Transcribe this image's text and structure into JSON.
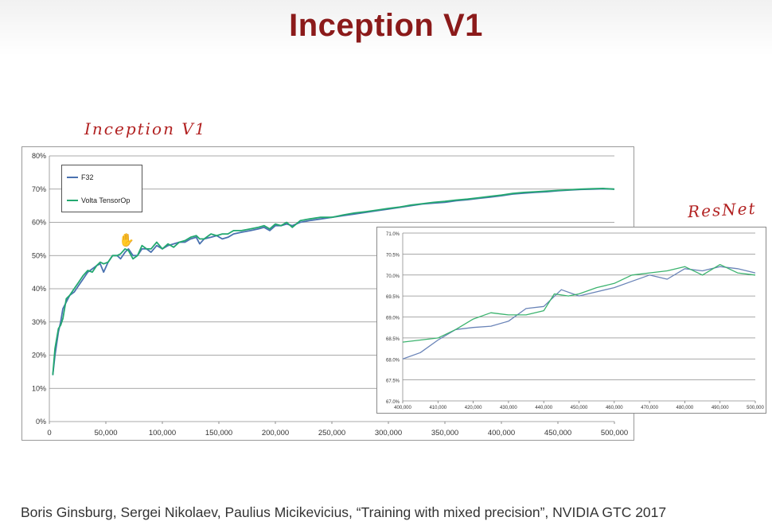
{
  "slide": {
    "title": "Inception V1",
    "handwritten_inception": "Inception V1",
    "handwritten_resnet": "ResNet",
    "citation": "Boris Ginsburg, Sergei Nikolaev, Paulius Micikevicius, “Training with mixed precision”, NVIDIA GTC 2017",
    "title_color": "#8b1a1a",
    "annotation_color": "#b22222"
  },
  "chart_data": [
    {
      "type": "line",
      "title": "",
      "xlabel": "",
      "ylabel": "",
      "xlim": [
        0,
        500000
      ],
      "ylim": [
        0,
        80
      ],
      "x_ticks": [
        "0",
        "50,000",
        "100,000",
        "150,000",
        "200,000",
        "250,000",
        "300,000",
        "350,000",
        "400,000",
        "450,000",
        "500,000"
      ],
      "y_ticks": [
        "0%",
        "10%",
        "20%",
        "30%",
        "40%",
        "50%",
        "60%",
        "70%",
        "80%"
      ],
      "grid": true,
      "legend_position": "top-left",
      "series": [
        {
          "name": "F32",
          "color": "#4a72b0",
          "points": [
            [
              3000,
              14
            ],
            [
              5000,
              20
            ],
            [
              8000,
              27
            ],
            [
              10000,
              30
            ],
            [
              12000,
              34
            ],
            [
              15000,
              36
            ],
            [
              18000,
              38
            ],
            [
              22000,
              39
            ],
            [
              26000,
              41
            ],
            [
              30000,
              43
            ],
            [
              34000,
              45
            ],
            [
              38000,
              46
            ],
            [
              42000,
              47
            ],
            [
              45000,
              47.5
            ],
            [
              48000,
              45
            ],
            [
              52000,
              48
            ],
            [
              56000,
              50
            ],
            [
              60000,
              50
            ],
            [
              63000,
              49
            ],
            [
              67000,
              51
            ],
            [
              70000,
              52
            ],
            [
              74000,
              50
            ],
            [
              78000,
              50
            ],
            [
              82000,
              52
            ],
            [
              86000,
              52
            ],
            [
              90000,
              51
            ],
            [
              95000,
              53
            ],
            [
              100000,
              52
            ],
            [
              105000,
              53
            ],
            [
              110000,
              53.5
            ],
            [
              115000,
              54
            ],
            [
              120000,
              54
            ],
            [
              125000,
              55
            ],
            [
              130000,
              55.5
            ],
            [
              133000,
              53.5
            ],
            [
              137000,
              55
            ],
            [
              143000,
              55.5
            ],
            [
              148000,
              56
            ],
            [
              153000,
              55
            ],
            [
              158000,
              55.5
            ],
            [
              163000,
              56.5
            ],
            [
              170000,
              57
            ],
            [
              178000,
              57.5
            ],
            [
              185000,
              58
            ],
            [
              190000,
              58.5
            ],
            [
              195000,
              57.5
            ],
            [
              200000,
              59
            ],
            [
              205000,
              59
            ],
            [
              210000,
              59.5
            ],
            [
              215000,
              59
            ],
            [
              222000,
              60
            ],
            [
              230000,
              60.5
            ],
            [
              240000,
              61
            ],
            [
              250000,
              61.5
            ],
            [
              260000,
              62
            ],
            [
              270000,
              62.5
            ],
            [
              280000,
              63
            ],
            [
              290000,
              63.5
            ],
            [
              300000,
              64
            ],
            [
              310000,
              64.5
            ],
            [
              320000,
              65
            ],
            [
              330000,
              65.5
            ],
            [
              340000,
              65.8
            ],
            [
              350000,
              66
            ],
            [
              360000,
              66.5
            ],
            [
              370000,
              66.8
            ],
            [
              380000,
              67.2
            ],
            [
              390000,
              67.6
            ],
            [
              400000,
              68
            ],
            [
              410000,
              68.5
            ],
            [
              420000,
              68.8
            ],
            [
              430000,
              69
            ],
            [
              440000,
              69.2
            ],
            [
              450000,
              69.5
            ],
            [
              460000,
              69.7
            ],
            [
              470000,
              69.9
            ],
            [
              480000,
              70
            ],
            [
              490000,
              70.1
            ],
            [
              500000,
              70
            ]
          ]
        },
        {
          "name": "Volta TensorOp",
          "color": "#23a870",
          "points": [
            [
              3000,
              14
            ],
            [
              5000,
              22
            ],
            [
              8000,
              28
            ],
            [
              10000,
              29
            ],
            [
              12000,
              31
            ],
            [
              15000,
              37
            ],
            [
              18000,
              38
            ],
            [
              22000,
              40
            ],
            [
              26000,
              42
            ],
            [
              30000,
              44
            ],
            [
              34000,
              45.5
            ],
            [
              38000,
              45
            ],
            [
              42000,
              47
            ],
            [
              45000,
              48
            ],
            [
              48000,
              47.5
            ],
            [
              52000,
              48
            ],
            [
              56000,
              50
            ],
            [
              60000,
              50
            ],
            [
              63000,
              50.5
            ],
            [
              67000,
              52
            ],
            [
              70000,
              51.5
            ],
            [
              74000,
              49
            ],
            [
              78000,
              50
            ],
            [
              82000,
              53
            ],
            [
              86000,
              52
            ],
            [
              90000,
              52
            ],
            [
              95000,
              54
            ],
            [
              100000,
              52
            ],
            [
              105000,
              53.5
            ],
            [
              110000,
              52.5
            ],
            [
              115000,
              54
            ],
            [
              120000,
              54.5
            ],
            [
              125000,
              55.5
            ],
            [
              130000,
              56
            ],
            [
              133000,
              55
            ],
            [
              137000,
              55
            ],
            [
              143000,
              56.5
            ],
            [
              148000,
              56
            ],
            [
              153000,
              56.5
            ],
            [
              158000,
              56.5
            ],
            [
              163000,
              57.5
            ],
            [
              170000,
              57.5
            ],
            [
              178000,
              58
            ],
            [
              185000,
              58.5
            ],
            [
              190000,
              59
            ],
            [
              195000,
              58
            ],
            [
              200000,
              59.5
            ],
            [
              205000,
              59
            ],
            [
              210000,
              60
            ],
            [
              215000,
              58.5
            ],
            [
              222000,
              60.5
            ],
            [
              230000,
              61
            ],
            [
              240000,
              61.5
            ],
            [
              250000,
              61.5
            ],
            [
              260000,
              62.2
            ],
            [
              270000,
              62.8
            ],
            [
              280000,
              63.2
            ],
            [
              290000,
              63.7
            ],
            [
              300000,
              64.2
            ],
            [
              310000,
              64.6
            ],
            [
              320000,
              65.2
            ],
            [
              330000,
              65.6
            ],
            [
              340000,
              66
            ],
            [
              350000,
              66.3
            ],
            [
              360000,
              66.7
            ],
            [
              370000,
              67
            ],
            [
              380000,
              67.4
            ],
            [
              390000,
              67.8
            ],
            [
              400000,
              68.2
            ],
            [
              410000,
              68.7
            ],
            [
              420000,
              69
            ],
            [
              430000,
              69.2
            ],
            [
              440000,
              69.4
            ],
            [
              450000,
              69.6
            ],
            [
              460000,
              69.8
            ],
            [
              470000,
              70
            ],
            [
              480000,
              70.1
            ],
            [
              490000,
              70.2
            ],
            [
              500000,
              70
            ]
          ]
        }
      ]
    },
    {
      "type": "line",
      "title": "",
      "xlabel": "",
      "ylabel": "",
      "xlim": [
        400000,
        500000
      ],
      "ylim": [
        67,
        71
      ],
      "x_ticks": [
        "400,000",
        "410,000",
        "420,000",
        "430,000",
        "440,000",
        "450,000",
        "460,000",
        "470,000",
        "480,000",
        "490,000",
        "500,000"
      ],
      "y_ticks": [
        "67.0%",
        "67.5%",
        "68.0%",
        "68.5%",
        "69.0%",
        "69.5%",
        "70.0%",
        "70.5%",
        "71.0%"
      ],
      "grid": true,
      "series": [
        {
          "color": "#6a84b8",
          "points": [
            [
              400000,
              68
            ],
            [
              405000,
              68.15
            ],
            [
              410000,
              68.45
            ],
            [
              415000,
              68.7
            ],
            [
              420000,
              68.75
            ],
            [
              425000,
              68.78
            ],
            [
              430000,
              68.9
            ],
            [
              435000,
              69.2
            ],
            [
              440000,
              69.25
            ],
            [
              445000,
              69.65
            ],
            [
              450000,
              69.5
            ],
            [
              455000,
              69.6
            ],
            [
              460000,
              69.7
            ],
            [
              465000,
              69.85
            ],
            [
              470000,
              70
            ],
            [
              475000,
              69.9
            ],
            [
              480000,
              70.15
            ],
            [
              485000,
              70.1
            ],
            [
              490000,
              70.2
            ],
            [
              495000,
              70.15
            ],
            [
              500000,
              70.05
            ]
          ]
        },
        {
          "color": "#3bb36e",
          "points": [
            [
              400000,
              68.4
            ],
            [
              405000,
              68.45
            ],
            [
              410000,
              68.5
            ],
            [
              415000,
              68.7
            ],
            [
              420000,
              68.95
            ],
            [
              425000,
              69.1
            ],
            [
              430000,
              69.05
            ],
            [
              435000,
              69.05
            ],
            [
              440000,
              69.15
            ],
            [
              443000,
              69.55
            ],
            [
              447000,
              69.5
            ],
            [
              450000,
              69.55
            ],
            [
              455000,
              69.7
            ],
            [
              460000,
              69.8
            ],
            [
              465000,
              70
            ],
            [
              470000,
              70.05
            ],
            [
              475000,
              70.1
            ],
            [
              480000,
              70.2
            ],
            [
              485000,
              70
            ],
            [
              490000,
              70.25
            ],
            [
              495000,
              70.05
            ],
            [
              500000,
              70
            ]
          ]
        }
      ]
    }
  ]
}
